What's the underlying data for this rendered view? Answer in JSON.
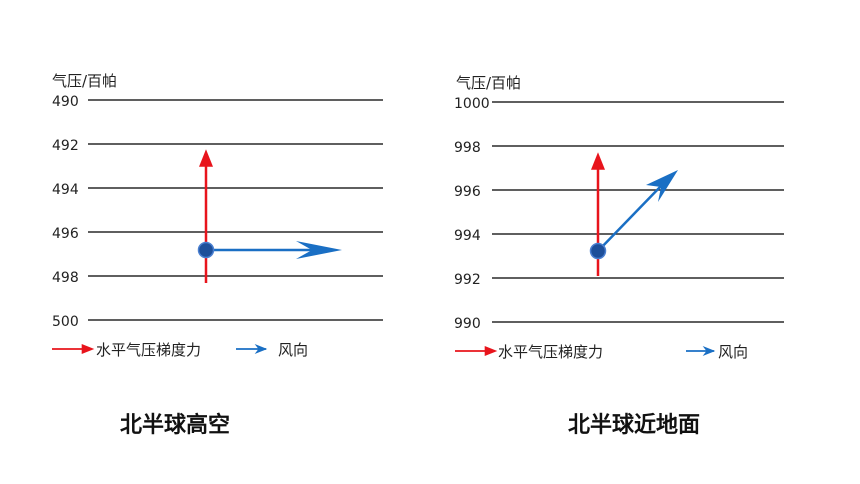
{
  "colors": {
    "pgf": "#e8141c",
    "wind": "#1a6fc4",
    "dot": "#1d4f9a",
    "isobar": "#2a2a2a"
  },
  "left": {
    "axis_unit": "气压/百帕",
    "isobars": [
      "490",
      "492",
      "494",
      "496",
      "498",
      "500"
    ],
    "legend_pgf": "水平气压梯度力",
    "legend_wind": "风向",
    "title": "北半球高空"
  },
  "right": {
    "axis_unit": "气压/百帕",
    "isobars": [
      "1000",
      "998",
      "996",
      "994",
      "992",
      "990"
    ],
    "legend_pgf": "水平气压梯度力",
    "legend_wind": "风向",
    "title": "北半球近地面"
  }
}
